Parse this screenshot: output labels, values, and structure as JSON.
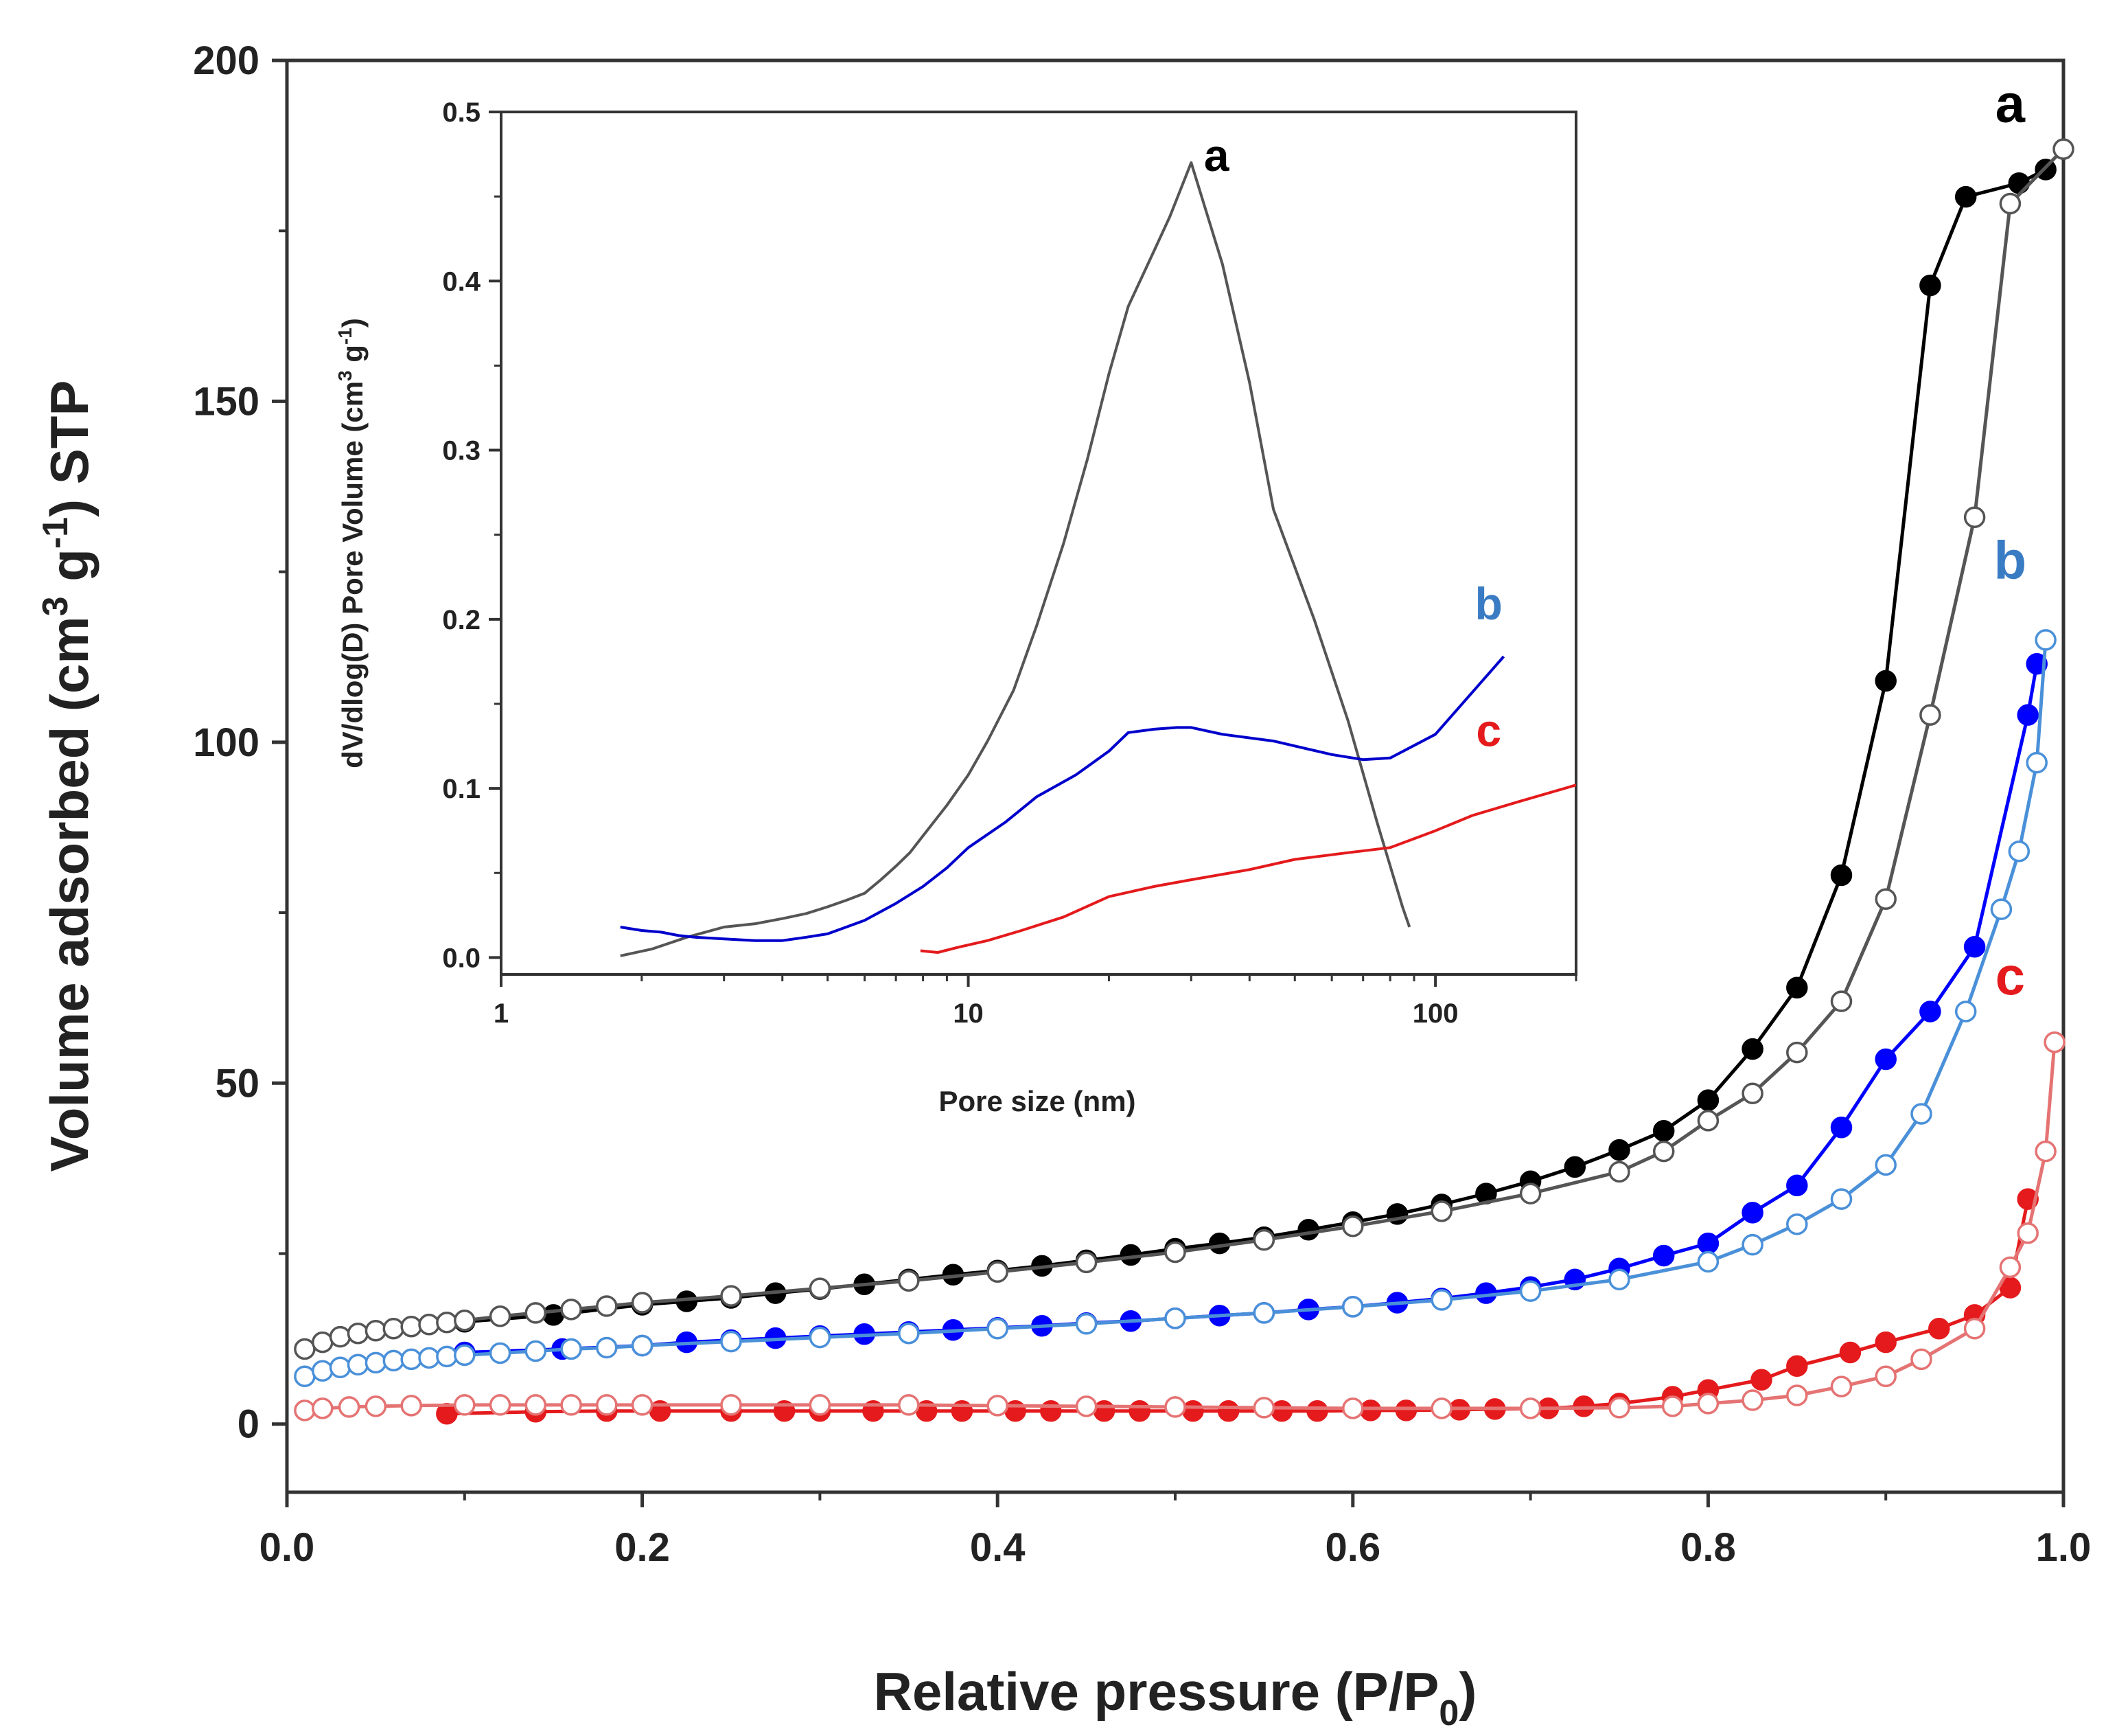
{
  "chart_data": [
    {
      "type": "scatter",
      "title": "",
      "xlabel": "Relative pressure (P/P0)",
      "xlabel_parts": {
        "base": "Relative pressure (P/P",
        "sub": "0",
        "end": ")"
      },
      "ylabel": "Volume adsorbed (cm3 g-1) STP",
      "ylabel_parts": {
        "a": "Volume adsorbed (cm",
        "sup1": "3",
        "b": " g",
        "sup2": "-1",
        "c": ") STP"
      },
      "xlim": [
        0.0,
        1.0
      ],
      "ylim": [
        -10,
        200
      ],
      "x_ticks": [
        0.0,
        0.2,
        0.4,
        0.6,
        0.8,
        1.0
      ],
      "x_tick_labels": [
        "0.0",
        "0.2",
        "0.4",
        "0.6",
        "0.8",
        "1.0"
      ],
      "y_ticks": [
        0,
        50,
        100,
        150,
        200
      ],
      "y_tick_labels": [
        "0",
        "50",
        "100",
        "150",
        "200"
      ],
      "grid": false,
      "series_labels": [
        {
          "text": "a",
          "color": "#000000",
          "at": [
            0.97,
            191
          ]
        },
        {
          "text": "b",
          "color": "#3a7cc4",
          "at": [
            0.97,
            124
          ]
        },
        {
          "text": "c",
          "color": "#e41a1c",
          "at": [
            0.97,
            63
          ]
        }
      ],
      "series": [
        {
          "name": "a adsorption",
          "branch": "adsorption",
          "color": "#000000",
          "marker": "filled",
          "x": [
            0.1,
            0.15,
            0.2,
            0.225,
            0.25,
            0.275,
            0.3,
            0.325,
            0.35,
            0.375,
            0.4,
            0.425,
            0.45,
            0.475,
            0.5,
            0.525,
            0.55,
            0.575,
            0.6,
            0.625,
            0.65,
            0.675,
            0.7,
            0.725,
            0.75,
            0.775,
            0.8,
            0.825,
            0.85,
            0.875,
            0.9,
            0.925,
            0.945,
            0.975,
            0.99
          ],
          "values": [
            15,
            16,
            17.5,
            18,
            18.5,
            19.2,
            19.8,
            20.5,
            21.2,
            21.9,
            22.5,
            23.2,
            24,
            24.8,
            25.7,
            26.5,
            27.4,
            28.5,
            29.6,
            30.8,
            32.2,
            33.8,
            35.6,
            37.7,
            40.2,
            43,
            47.5,
            55,
            64,
            80.5,
            109,
            167,
            180,
            182,
            184
          ]
        },
        {
          "name": "a desorption",
          "branch": "desorption",
          "color": "#555555",
          "marker": "open",
          "x": [
            0.01,
            0.02,
            0.03,
            0.04,
            0.05,
            0.06,
            0.07,
            0.08,
            0.09,
            0.1,
            0.12,
            0.14,
            0.16,
            0.18,
            0.2,
            0.25,
            0.3,
            0.35,
            0.4,
            0.45,
            0.5,
            0.55,
            0.6,
            0.65,
            0.7,
            0.75,
            0.775,
            0.8,
            0.825,
            0.85,
            0.875,
            0.9,
            0.925,
            0.95,
            0.97,
            1.0
          ],
          "values": [
            11,
            12,
            12.8,
            13.3,
            13.7,
            14,
            14.3,
            14.6,
            14.9,
            15.2,
            15.8,
            16.3,
            16.8,
            17.3,
            17.8,
            18.8,
            19.9,
            21,
            22.3,
            23.7,
            25.2,
            27,
            29,
            31.2,
            33.8,
            37,
            40,
            44.5,
            48.5,
            54.5,
            62,
            77,
            104,
            133,
            179,
            187
          ]
        },
        {
          "name": "b adsorption",
          "branch": "adsorption",
          "color": "#0000ff",
          "marker": "filled",
          "x": [
            0.1,
            0.155,
            0.2,
            0.225,
            0.25,
            0.275,
            0.3,
            0.325,
            0.35,
            0.375,
            0.4,
            0.425,
            0.45,
            0.475,
            0.5,
            0.525,
            0.55,
            0.575,
            0.6,
            0.625,
            0.65,
            0.675,
            0.7,
            0.725,
            0.75,
            0.775,
            0.8,
            0.825,
            0.85,
            0.875,
            0.9,
            0.925,
            0.95,
            0.98,
            0.985
          ],
          "values": [
            10.5,
            11,
            11.5,
            12,
            12.3,
            12.6,
            12.9,
            13.2,
            13.5,
            13.8,
            14.1,
            14.4,
            14.8,
            15.1,
            15.5,
            15.9,
            16.3,
            16.8,
            17.2,
            17.8,
            18.4,
            19.2,
            20.1,
            21.2,
            22.8,
            24.7,
            26.5,
            31,
            35,
            43.5,
            53.5,
            60.5,
            70,
            104,
            111.5
          ]
        },
        {
          "name": "b desorption",
          "branch": "desorption",
          "color": "#4a90d9",
          "marker": "open",
          "x": [
            0.01,
            0.02,
            0.03,
            0.04,
            0.05,
            0.06,
            0.07,
            0.08,
            0.09,
            0.1,
            0.12,
            0.14,
            0.16,
            0.18,
            0.2,
            0.25,
            0.3,
            0.35,
            0.4,
            0.45,
            0.5,
            0.55,
            0.6,
            0.65,
            0.7,
            0.75,
            0.8,
            0.825,
            0.85,
            0.875,
            0.9,
            0.92,
            0.945,
            0.965,
            0.975,
            0.985,
            0.99
          ],
          "values": [
            7,
            7.8,
            8.3,
            8.7,
            9.0,
            9.3,
            9.5,
            9.7,
            9.9,
            10.1,
            10.4,
            10.7,
            11,
            11.2,
            11.5,
            12.1,
            12.7,
            13.3,
            14,
            14.7,
            15.5,
            16.3,
            17.2,
            18.2,
            19.5,
            21.2,
            23.8,
            26.3,
            29.3,
            33,
            38,
            45.5,
            60.5,
            75.5,
            84,
            97,
            115
          ]
        },
        {
          "name": "c adsorption",
          "branch": "adsorption",
          "color": "#e41a1c",
          "marker": "filled",
          "x": [
            0.09,
            0.14,
            0.18,
            0.21,
            0.25,
            0.28,
            0.3,
            0.33,
            0.36,
            0.38,
            0.41,
            0.43,
            0.46,
            0.48,
            0.51,
            0.53,
            0.56,
            0.58,
            0.61,
            0.63,
            0.66,
            0.68,
            0.71,
            0.73,
            0.75,
            0.78,
            0.8,
            0.83,
            0.85,
            0.88,
            0.9,
            0.93,
            0.95,
            0.97,
            0.98
          ],
          "values": [
            1.5,
            1.8,
            1.9,
            1.9,
            1.9,
            1.9,
            1.9,
            1.9,
            1.9,
            1.9,
            1.9,
            1.9,
            1.9,
            1.9,
            1.9,
            1.9,
            1.9,
            1.9,
            2.0,
            2.0,
            2.1,
            2.2,
            2.3,
            2.6,
            3.0,
            4.0,
            5.0,
            6.5,
            8.5,
            10.5,
            12,
            14,
            16,
            20,
            33
          ]
        },
        {
          "name": "c desorption",
          "branch": "desorption",
          "color": "#e57373",
          "marker": "open",
          "x": [
            0.01,
            0.02,
            0.035,
            0.05,
            0.07,
            0.1,
            0.12,
            0.14,
            0.16,
            0.18,
            0.2,
            0.25,
            0.3,
            0.35,
            0.4,
            0.45,
            0.5,
            0.55,
            0.6,
            0.65,
            0.7,
            0.75,
            0.78,
            0.8,
            0.825,
            0.85,
            0.875,
            0.9,
            0.92,
            0.95,
            0.97,
            0.98,
            0.99,
            0.995
          ],
          "values": [
            2.0,
            2.3,
            2.5,
            2.6,
            2.7,
            2.8,
            2.8,
            2.8,
            2.8,
            2.8,
            2.8,
            2.8,
            2.8,
            2.8,
            2.7,
            2.6,
            2.5,
            2.4,
            2.3,
            2.3,
            2.3,
            2.4,
            2.6,
            3.0,
            3.5,
            4.2,
            5.5,
            7.0,
            9.5,
            14,
            23,
            28,
            40,
            56
          ]
        }
      ]
    },
    {
      "type": "line",
      "title": "",
      "xlabel": "Pore size (nm)",
      "ylabel": "dV/dlog(D) Pore Volume (cm3 g-1)",
      "ylabel_parts": {
        "a": "dV/dlog(D) Pore Volume (cm",
        "sup1": "3",
        "b": " g",
        "sup2": "-1",
        "c": ")"
      },
      "xscale": "log",
      "xlim": [
        1,
        200
      ],
      "ylim": [
        -0.01,
        0.5
      ],
      "x_ticks": [
        1,
        10,
        100
      ],
      "x_tick_labels": [
        "1",
        "10",
        "100"
      ],
      "y_ticks": [
        0.0,
        0.1,
        0.2,
        0.3,
        0.4,
        0.5
      ],
      "y_tick_labels": [
        "0.0",
        "0.1",
        "0.2",
        "0.3",
        "0.4",
        "0.5"
      ],
      "grid": false,
      "series_labels": [
        {
          "text": "a",
          "color": "#000000",
          "at": [
            34,
            0.465
          ]
        },
        {
          "text": "b",
          "color": "#3a7cc4",
          "at": [
            130,
            0.2
          ]
        },
        {
          "text": "c",
          "color": "#e41a1c",
          "at": [
            130,
            0.125
          ]
        }
      ],
      "series": [
        {
          "name": "a",
          "color": "#555555",
          "x": [
            1.8,
            2.1,
            2.5,
            3.0,
            3.5,
            4.0,
            4.5,
            5.0,
            5.5,
            6.0,
            6.5,
            7.0,
            7.5,
            8.0,
            9.0,
            10.0,
            11.0,
            12.5,
            14.0,
            16.0,
            18.0,
            20.0,
            22.0,
            25.0,
            27.0,
            30.0,
            35.0,
            40.0,
            45.0,
            55.0,
            65.0,
            75.0,
            85.0,
            88.0
          ],
          "values": [
            0.001,
            0.005,
            0.012,
            0.018,
            0.02,
            0.023,
            0.026,
            0.03,
            0.034,
            0.038,
            0.046,
            0.054,
            0.062,
            0.072,
            0.09,
            0.108,
            0.128,
            0.158,
            0.196,
            0.245,
            0.295,
            0.345,
            0.385,
            0.418,
            0.438,
            0.47,
            0.41,
            0.34,
            0.265,
            0.2,
            0.14,
            0.08,
            0.03,
            0.018
          ]
        },
        {
          "name": "b",
          "color": "#0000cc",
          "x": [
            1.8,
            2.0,
            2.2,
            2.4,
            2.6,
            3.0,
            3.5,
            4.0,
            4.5,
            5.0,
            6.0,
            7.0,
            8.0,
            9.0,
            10.0,
            12.0,
            14.0,
            17.0,
            20.0,
            22.0,
            25.0,
            28.0,
            30.0,
            35.0,
            45.0,
            60.0,
            70.0,
            80.0,
            100.0,
            140.0
          ],
          "values": [
            0.018,
            0.016,
            0.015,
            0.013,
            0.012,
            0.011,
            0.01,
            0.01,
            0.012,
            0.014,
            0.022,
            0.032,
            0.042,
            0.053,
            0.065,
            0.08,
            0.095,
            0.108,
            0.122,
            0.133,
            0.135,
            0.136,
            0.136,
            0.132,
            0.128,
            0.12,
            0.117,
            0.118,
            0.132,
            0.178
          ]
        },
        {
          "name": "c",
          "color": "#e41a1c",
          "x": [
            7.9,
            8.6,
            9.5,
            11.0,
            13.0,
            16.0,
            20.0,
            25.0,
            30.0,
            40.0,
            50.0,
            65.0,
            80.0,
            100.0,
            120.0,
            150.0,
            200.0
          ],
          "values": [
            0.004,
            0.003,
            0.006,
            0.01,
            0.016,
            0.024,
            0.036,
            0.042,
            0.046,
            0.052,
            0.058,
            0.062,
            0.065,
            0.075,
            0.084,
            0.092,
            0.102
          ]
        }
      ]
    }
  ]
}
